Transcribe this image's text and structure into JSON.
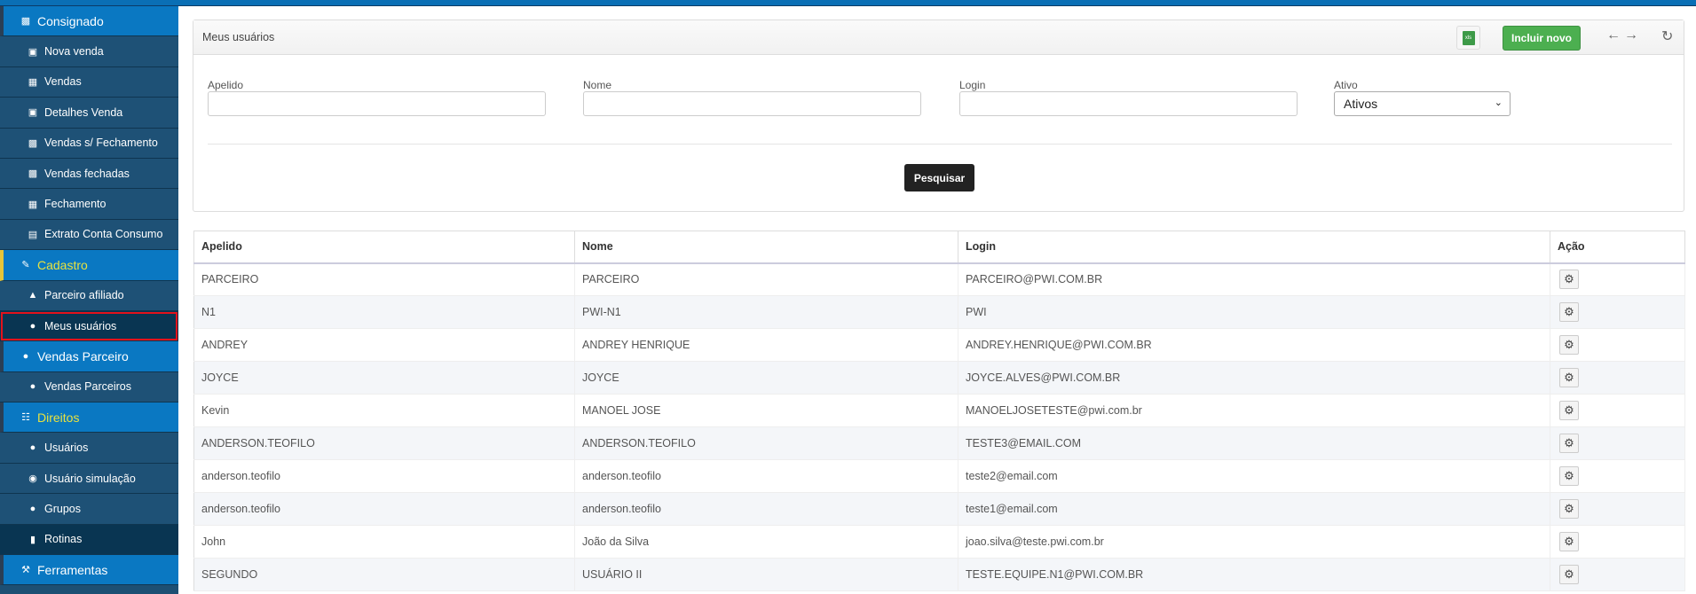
{
  "sidebar": {
    "items": [
      {
        "label": "Consignado",
        "icon": "briefcase-icon",
        "type": "section"
      },
      {
        "label": "Nova venda",
        "icon": "money-icon"
      },
      {
        "label": "Vendas",
        "icon": "table-icon"
      },
      {
        "label": "Detalhes Venda",
        "icon": "money-icon"
      },
      {
        "label": "Vendas s/ Fechamento",
        "icon": "briefcase-icon"
      },
      {
        "label": "Vendas fechadas",
        "icon": "briefcase-icon"
      },
      {
        "label": "Fechamento",
        "icon": "calendar-icon"
      },
      {
        "label": "Extrato Conta Consumo",
        "icon": "list-icon"
      },
      {
        "label": "Cadastro",
        "icon": "edit-icon",
        "type": "section"
      },
      {
        "label": "Parceiro afiliado",
        "icon": "sitemap-icon"
      },
      {
        "label": "Meus usuários",
        "icon": "users-icon"
      },
      {
        "label": "Vendas Parceiro",
        "icon": "users-icon",
        "type": "section"
      },
      {
        "label": "Vendas Parceiros",
        "icon": "users-icon"
      },
      {
        "label": "Direitos",
        "icon": "file-icon",
        "type": "section"
      },
      {
        "label": "Usuários",
        "icon": "user-icon"
      },
      {
        "label": "Usuário simulação",
        "icon": "eye-icon"
      },
      {
        "label": "Grupos",
        "icon": "users-icon"
      },
      {
        "label": "Rotinas",
        "icon": "book-icon"
      },
      {
        "label": "Ferramentas",
        "icon": "wrench-icon",
        "type": "section"
      }
    ]
  },
  "panel": {
    "title": "Meus usuários",
    "excel_icon": "xls",
    "new_button": "Incluir novo",
    "search_button": "Pesquisar",
    "filters": {
      "apelido": "Apelido",
      "nome": "Nome",
      "login": "Login",
      "ativo": "Ativo",
      "ativo_value": "Ativos"
    }
  },
  "table": {
    "headers": [
      "Apelido",
      "Nome",
      "Login",
      "Ação"
    ],
    "rows": [
      [
        "PARCEIRO",
        "PARCEIRO",
        "PARCEIRO@PWI.COM.BR"
      ],
      [
        "N1",
        "PWI-N1",
        "PWI"
      ],
      [
        "ANDREY",
        "ANDREY HENRIQUE",
        "ANDREY.HENRIQUE@PWI.COM.BR"
      ],
      [
        "JOYCE",
        "JOYCE",
        "JOYCE.ALVES@PWI.COM.BR"
      ],
      [
        "Kevin",
        "MANOEL JOSE",
        "MANOELJOSETESTE@pwi.com.br"
      ],
      [
        "ANDERSON.TEOFILO",
        "ANDERSON.TEOFILO",
        "TESTE3@EMAIL.COM"
      ],
      [
        "anderson.teofilo",
        "anderson.teofilo",
        "teste2@email.com"
      ],
      [
        "anderson.teofilo",
        "anderson.teofilo",
        "teste1@email.com"
      ],
      [
        "John",
        "João da Silva",
        "joao.silva@teste.pwi.com.br"
      ],
      [
        "SEGUNDO",
        "USUÁRIO II",
        "TESTE.EQUIPE.N1@PWI.COM.BR"
      ]
    ]
  },
  "colors": {
    "sidebar": "#1e5176",
    "section": "#0a78c2",
    "accent_green": "#4caf50",
    "highlight": "#e3121b"
  }
}
